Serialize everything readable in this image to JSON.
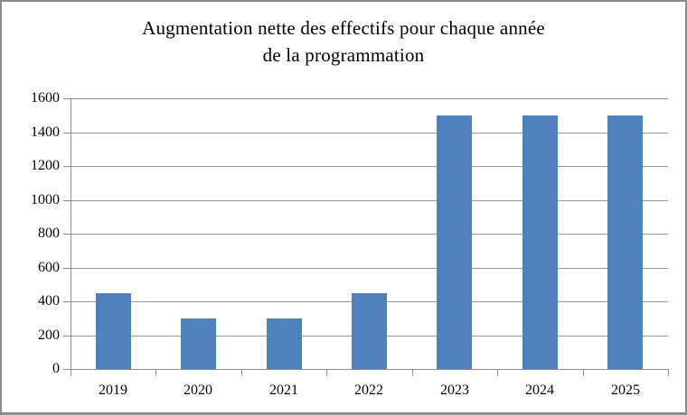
{
  "chart_data": {
    "type": "bar",
    "title": "Augmentation nette des effectifs pour chaque année de la programmation",
    "title_lines": [
      "Augmentation nette des effectifs pour chaque année",
      "de la programmation"
    ],
    "categories": [
      "2019",
      "2020",
      "2021",
      "2022",
      "2023",
      "2024",
      "2025"
    ],
    "values": [
      450,
      300,
      300,
      450,
      1500,
      1500,
      1500
    ],
    "xlabel": "",
    "ylabel": "",
    "ylim": [
      0,
      1600
    ],
    "yticks": [
      0,
      200,
      400,
      600,
      800,
      1000,
      1200,
      1400,
      1600
    ],
    "grid": true,
    "legend": false,
    "colors": {
      "bar": "#4f81bd",
      "gridline": "#969696",
      "axis": "#8c8c8c",
      "text": "#000000",
      "frame_border": "#8a8a8a",
      "background": "#ffffff"
    }
  }
}
